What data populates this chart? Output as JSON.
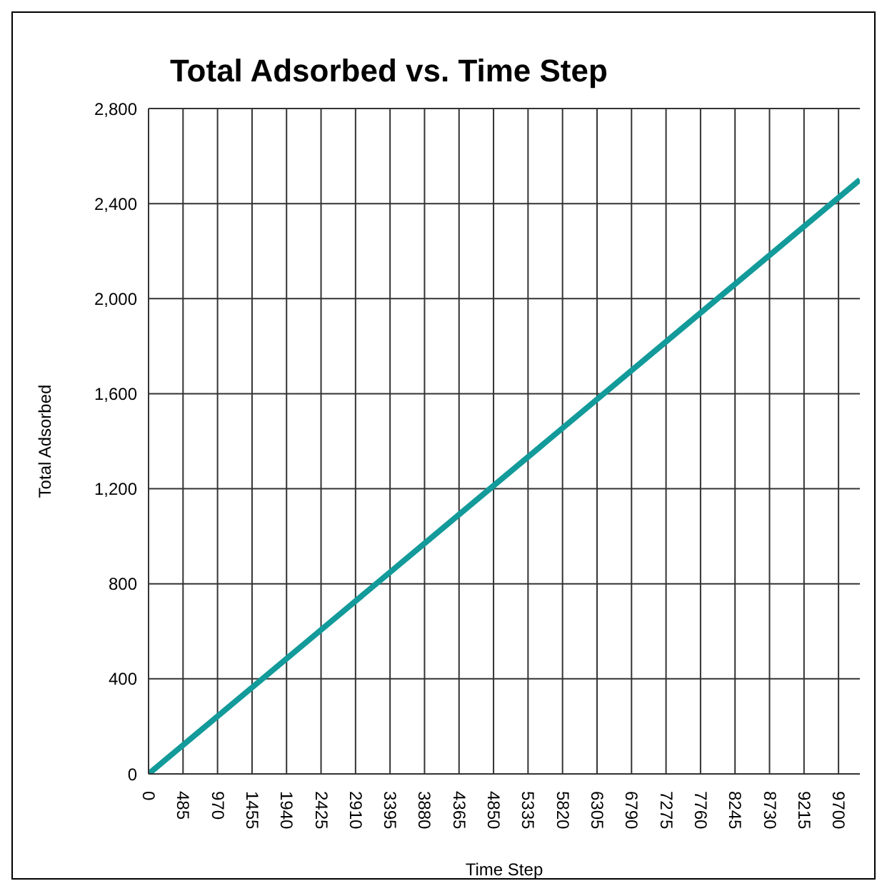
{
  "chart_data": {
    "type": "line",
    "title": "Total Adsorbed vs. Time Step",
    "xlabel": "Time Step",
    "ylabel": "Total Adsorbed",
    "x": [
      0,
      2500,
      5000,
      7500,
      10000
    ],
    "series": [
      {
        "color": "#139a9a",
        "values": [
          0,
          625,
          1250,
          1875,
          2500
        ]
      }
    ],
    "xlim": [
      0,
      10000
    ],
    "xticks": [
      0,
      485,
      970,
      1455,
      1940,
      2425,
      2910,
      3395,
      3880,
      4365,
      4850,
      5335,
      5820,
      6305,
      6790,
      7275,
      7760,
      8245,
      8730,
      9215,
      9700
    ],
    "ylim": [
      0,
      2800
    ],
    "yticks": [
      0,
      {
        "value": 400,
        "label": "400"
      },
      {
        "value": 800,
        "label": "800"
      },
      {
        "value": 1200,
        "label": "1,200"
      },
      {
        "value": 1600,
        "label": "1,600"
      },
      {
        "value": 2000,
        "label": "2,000"
      },
      {
        "value": 2400,
        "label": "2,400"
      },
      {
        "value": 2800,
        "label": "2,800"
      }
    ],
    "grid": true,
    "marker": "none",
    "line_style": "solid",
    "legend": false
  }
}
